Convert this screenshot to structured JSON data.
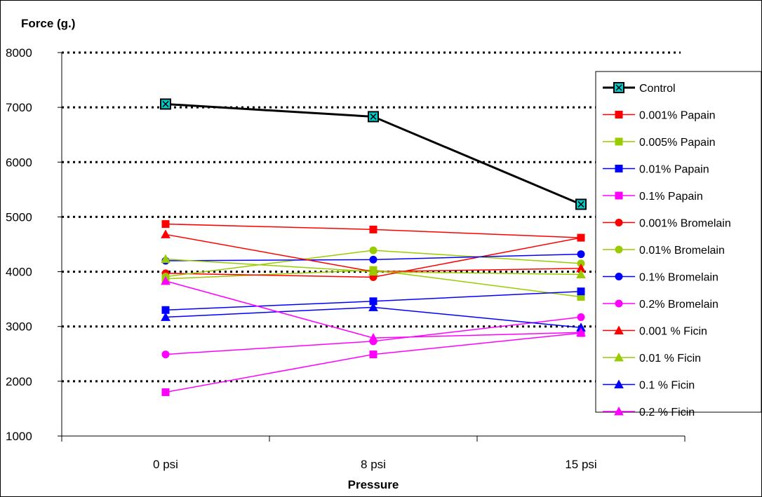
{
  "chart_data": {
    "type": "line",
    "ylabel": "Force (g.)",
    "xlabel": "Pressure",
    "categories": [
      "0 psi",
      "8 psi",
      "15 psi"
    ],
    "ylim": [
      1000,
      8000
    ],
    "y_ticks": [
      "1000",
      "2000",
      "3000",
      "4000",
      "5000",
      "6000",
      "7000",
      "8000"
    ],
    "grid": "horizontal dotted",
    "legend_position": "right",
    "series": [
      {
        "name": "Control",
        "values": [
          7060,
          6830,
          5230
        ],
        "color": "#000000",
        "marker": "x-square"
      },
      {
        "name": "0.001% Papain",
        "values": [
          4870,
          4770,
          4620
        ],
        "color": "#FF0000",
        "marker": "square"
      },
      {
        "name": "0.005% Papain",
        "values": [
          3870,
          4030,
          3540
        ],
        "color": "#99CC00",
        "marker": "square"
      },
      {
        "name": "0.01% Papain",
        "values": [
          3300,
          3460,
          3640
        ],
        "color": "#0000FF",
        "marker": "square"
      },
      {
        "name": "0.1% Papain",
        "values": [
          1800,
          2490,
          2880
        ],
        "color": "#FF00FF",
        "marker": "square"
      },
      {
        "name": "0.001% Bromelain",
        "values": [
          3970,
          3900,
          4620
        ],
        "color": "#FF0000",
        "marker": "circle"
      },
      {
        "name": "0.01% Bromelain",
        "values": [
          3910,
          4390,
          4150
        ],
        "color": "#99CC00",
        "marker": "circle"
      },
      {
        "name": "0.1% Bromelain",
        "values": [
          4200,
          4220,
          4320
        ],
        "color": "#0000FF",
        "marker": "circle"
      },
      {
        "name": "0.2% Bromelain",
        "values": [
          2490,
          2730,
          3170
        ],
        "color": "#FF00FF",
        "marker": "circle"
      },
      {
        "name": "0.001 % Ficin",
        "values": [
          4680,
          4000,
          4060
        ],
        "color": "#FF0000",
        "marker": "triangle"
      },
      {
        "name": "0.01 % Ficin",
        "values": [
          4230,
          4000,
          3950
        ],
        "color": "#99CC00",
        "marker": "triangle"
      },
      {
        "name": "0.1 % Ficin",
        "values": [
          3170,
          3350,
          2980
        ],
        "color": "#0000FF",
        "marker": "triangle"
      },
      {
        "name": "0.2 % Ficin",
        "values": [
          3830,
          2790,
          2890
        ],
        "color": "#FF00FF",
        "marker": "triangle"
      }
    ]
  }
}
